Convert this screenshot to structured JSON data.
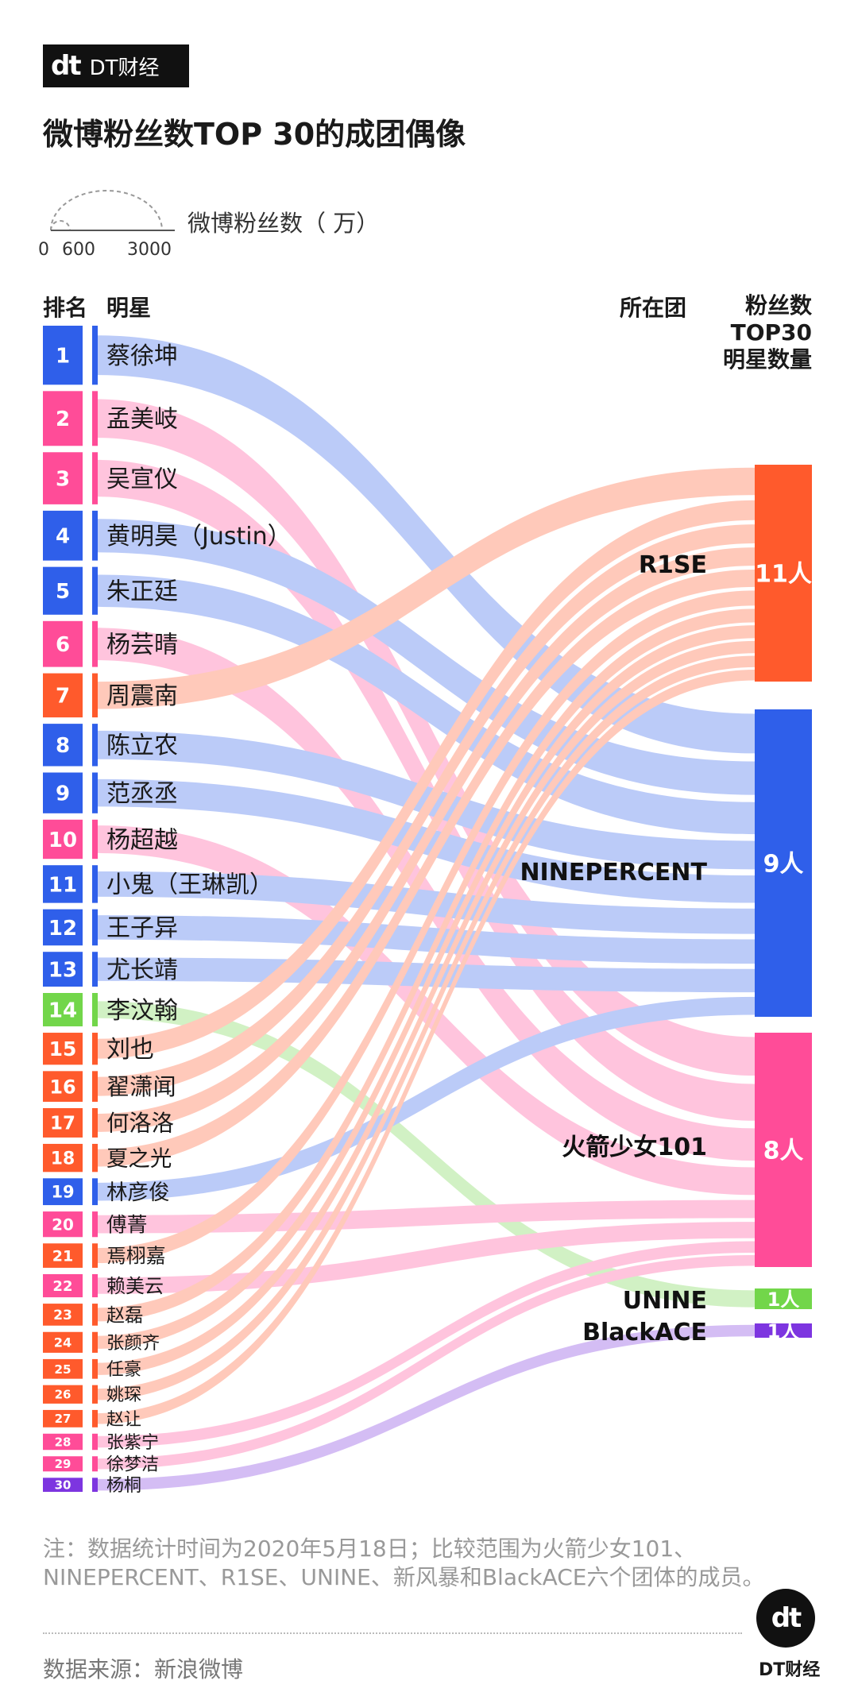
{
  "brand": {
    "mark": "dt",
    "name": "DT财经"
  },
  "title": "微博粉丝数TOP 30的成团偶像",
  "size_legend": {
    "label": "微博粉丝数（    万）",
    "ticks": [
      "0",
      "600",
      "3000"
    ]
  },
  "headers": {
    "rank": "排名",
    "star": "明星",
    "group": "所在团",
    "count_line1": "粉丝数",
    "count_line2": "TOP30",
    "count_line3": "明星数量"
  },
  "note": "注：数据统计时间为2020年5月18日；比较范围为火箭少女101、NINEPERCENT、R1SE、UNINE、新风暴和BlackACE六个团体的成员。",
  "source": "数据来源：新浪微博",
  "colors": {
    "NINEPERCENT": "#2f5fea",
    "火箭少女101": "#ff4c98",
    "R1SE": "#ff5a2c",
    "UNINE": "#72d64a",
    "BlackACE": "#7d35e0"
  },
  "chart_data": {
    "type": "sankey",
    "groups": [
      {
        "name": "R1SE",
        "count": 11,
        "count_label": "11人"
      },
      {
        "name": "NINEPERCENT",
        "count": 9,
        "count_label": "9人"
      },
      {
        "name": "火箭少女101",
        "count": 8,
        "count_label": "8人"
      },
      {
        "name": "UNINE",
        "count": 1,
        "count_label": "1人"
      },
      {
        "name": "BlackACE",
        "count": 1,
        "count_label": "1人"
      }
    ],
    "stars": [
      {
        "rank": "1",
        "name": "蔡徐坤",
        "group": "NINEPERCENT"
      },
      {
        "rank": "2",
        "name": "孟美岐",
        "group": "火箭少女101"
      },
      {
        "rank": "3",
        "name": "吴宣仪",
        "group": "火箭少女101"
      },
      {
        "rank": "4",
        "name": "黄明昊（Justin）",
        "group": "NINEPERCENT"
      },
      {
        "rank": "5",
        "name": "朱正廷",
        "group": "NINEPERCENT"
      },
      {
        "rank": "6",
        "name": "杨芸晴",
        "group": "火箭少女101"
      },
      {
        "rank": "7",
        "name": "周震南",
        "group": "R1SE"
      },
      {
        "rank": "8",
        "name": "陈立农",
        "group": "NINEPERCENT"
      },
      {
        "rank": "9",
        "name": "范丞丞",
        "group": "NINEPERCENT"
      },
      {
        "rank": "10",
        "name": "杨超越",
        "group": "火箭少女101"
      },
      {
        "rank": "11",
        "name": "小鬼（王琳凯）",
        "group": "NINEPERCENT"
      },
      {
        "rank": "12",
        "name": "王子异",
        "group": "NINEPERCENT"
      },
      {
        "rank": "13",
        "name": "尤长靖",
        "group": "NINEPERCENT"
      },
      {
        "rank": "14",
        "name": "李汶翰",
        "group": "UNINE"
      },
      {
        "rank": "15",
        "name": "刘也",
        "group": "R1SE"
      },
      {
        "rank": "16",
        "name": "翟潇闻",
        "group": "R1SE"
      },
      {
        "rank": "17",
        "name": "何洛洛",
        "group": "R1SE"
      },
      {
        "rank": "18",
        "name": "夏之光",
        "group": "R1SE"
      },
      {
        "rank": "19",
        "name": "林彦俊",
        "group": "NINEPERCENT"
      },
      {
        "rank": "20",
        "name": "傅菁",
        "group": "火箭少女101"
      },
      {
        "rank": "21",
        "name": "焉栩嘉",
        "group": "R1SE"
      },
      {
        "rank": "22",
        "name": "赖美云",
        "group": "火箭少女101"
      },
      {
        "rank": "23",
        "name": "赵磊",
        "group": "R1SE"
      },
      {
        "rank": "24",
        "name": "张颜齐",
        "group": "R1SE"
      },
      {
        "rank": "25",
        "name": "任豪",
        "group": "R1SE"
      },
      {
        "rank": "26",
        "name": "姚琛",
        "group": "R1SE"
      },
      {
        "rank": "27",
        "name": "赵让",
        "group": "R1SE"
      },
      {
        "rank": "28",
        "name": "张紫宁",
        "group": "火箭少女101"
      },
      {
        "rank": "29",
        "name": "徐梦洁",
        "group": "火箭少女101"
      },
      {
        "rank": "30",
        "name": "杨桐",
        "group": "BlackACE"
      }
    ]
  }
}
